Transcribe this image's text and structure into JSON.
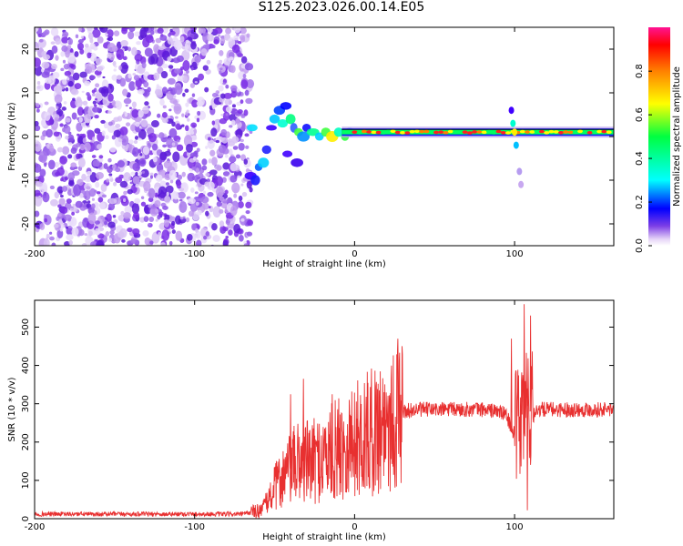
{
  "title": "S125.2023.026.00.14.E05",
  "chart_data": [
    {
      "type": "heatmap",
      "title": "S125.2023.026.00.14.E05",
      "xlabel": "Height of straight line (km)",
      "ylabel": "Frequency (Hz)",
      "xlim": [
        -200,
        162
      ],
      "ylim": [
        -25,
        25
      ],
      "x_ticks": [
        -200,
        -100,
        0,
        100
      ],
      "y_ticks": [
        -20,
        -10,
        0,
        10,
        20
      ],
      "colorbar": {
        "label": "Normalized spectral amplitude",
        "range": [
          0,
          1
        ],
        "ticks": [
          "0.0",
          "0.2",
          "0.4",
          "0.6",
          "0.8"
        ]
      },
      "features": {
        "noise_region_x": [
          -200,
          -68
        ],
        "signal_line_frequency_hz": 1,
        "signal_line_x": [
          0,
          162
        ]
      }
    },
    {
      "type": "line",
      "xlabel": "Height of straight line (km)",
      "ylabel": "SNR (10 * v/v)",
      "xlim": [
        -200,
        162
      ],
      "ylim": [
        0,
        570
      ],
      "x_ticks": [
        -200,
        -100,
        0,
        100
      ],
      "y_ticks": [
        0,
        100,
        200,
        300,
        400,
        500
      ],
      "series": [
        {
          "color": "#e83030",
          "x": [
            -200,
            -150,
            -100,
            -70,
            -60,
            -55,
            -50,
            -45,
            -40,
            -35,
            -30,
            -25,
            -20,
            -15,
            -10,
            -5,
            0,
            10,
            20,
            30,
            40,
            50,
            60,
            70,
            80,
            90,
            95,
            100,
            103,
            106,
            108,
            110,
            115,
            130,
            162
          ],
          "y": [
            12,
            12,
            12,
            12,
            20,
            40,
            80,
            110,
            130,
            150,
            150,
            150,
            160,
            170,
            185,
            195,
            205,
            225,
            255,
            280,
            285,
            285,
            285,
            285,
            285,
            280,
            270,
            220,
            250,
            290,
            320,
            280,
            285,
            285,
            285
          ],
          "spikes": [
            {
              "x": -40,
              "y": 325
            },
            {
              "x": -32,
              "y": 365
            },
            {
              "x": -14,
              "y": 325
            },
            {
              "x": 98,
              "y": 470
            },
            {
              "x": 106,
              "y": 560
            },
            {
              "x": 108,
              "y": 22
            },
            {
              "x": 110,
              "y": 530
            }
          ]
        }
      ]
    }
  ]
}
